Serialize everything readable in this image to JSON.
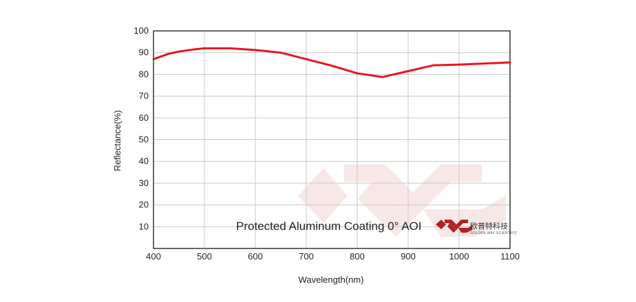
{
  "chart_data": {
    "type": "line",
    "title": "",
    "xlabel": "Wavelength(nm)",
    "ylabel": "Reflectance(%)",
    "xlim": [
      400,
      1100
    ],
    "ylim": [
      0,
      100
    ],
    "xticks": [
      400,
      500,
      600,
      700,
      800,
      900,
      1000,
      1100
    ],
    "yticks": [
      10,
      20,
      30,
      40,
      50,
      60,
      70,
      80,
      90,
      100
    ],
    "grid": true,
    "annotation": "Protected Aluminum Coating  0° AOI",
    "series": [
      {
        "color": "#e8141c",
        "x": [
          400,
          430,
          450,
          480,
          500,
          520,
          550,
          600,
          650,
          700,
          750,
          800,
          850,
          900,
          950,
          1000,
          1050,
          1100
        ],
        "y": [
          87,
          89.5,
          90.5,
          91.5,
          92,
          92,
          92,
          91.2,
          90,
          87,
          84,
          80.5,
          78.8,
          81.5,
          84.2,
          84.5,
          85,
          85.5
        ]
      }
    ]
  },
  "brand": {
    "name_cn": "欧普特科技",
    "name_en": "GOLDEN WAY SCIENTIFIC",
    "logo_icon": "golden-way-logo-icon",
    "logo_color": "#b52025",
    "watermark_color": "#f2d4d4"
  },
  "colors": {
    "line": "#e8141c",
    "grid": "#c8c8c8",
    "axes": "#000000"
  }
}
